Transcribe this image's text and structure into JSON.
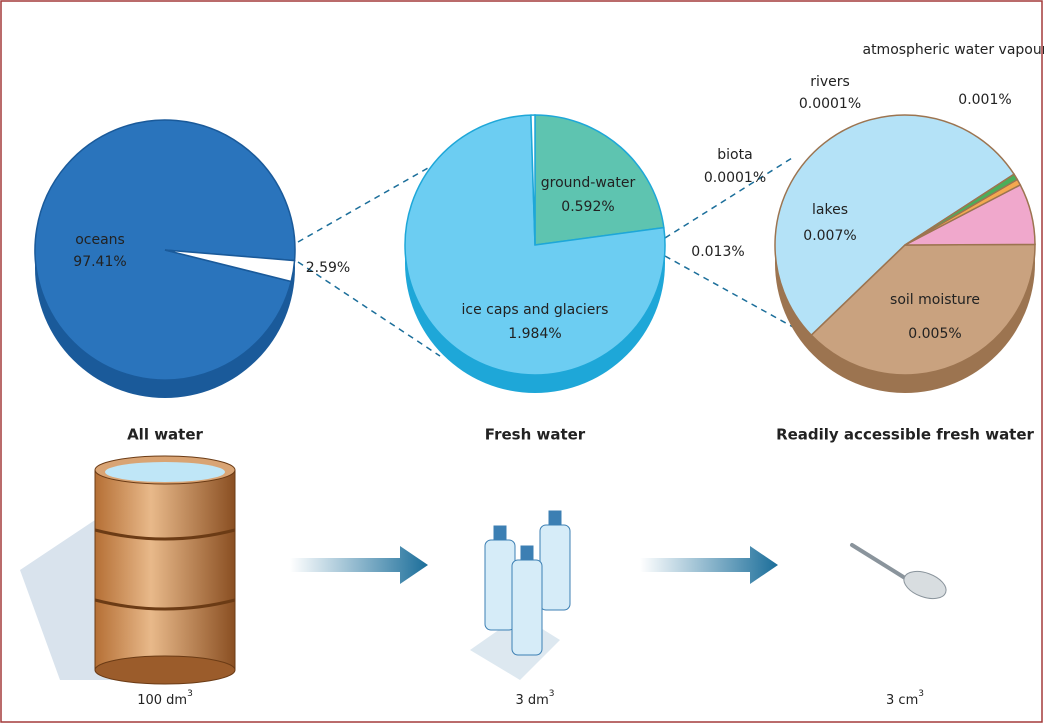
{
  "chart_data": [
    {
      "type": "pie",
      "title": "All water",
      "categories": [
        "oceans",
        null
      ],
      "values": [
        97.41,
        2.59
      ],
      "value_labels": [
        "97.41%",
        "2.59%"
      ],
      "colors": [
        "#2a74bc",
        "#ffffff"
      ],
      "volume": "100 dm",
      "volume_exponent": "3"
    },
    {
      "type": "pie",
      "title": "Fresh water",
      "categories": [
        "ground-water",
        "ice caps and glaciers",
        null
      ],
      "values": [
        0.592,
        1.984,
        0.013
      ],
      "value_labels": [
        "0.592%",
        "1.984%",
        "0.013%"
      ],
      "colors": [
        "#5ec4b0",
        "#6ccdf2",
        "#ffffff"
      ],
      "volume": "3 dm",
      "volume_exponent": "3"
    },
    {
      "type": "pie",
      "title": "Readily accessible fresh water",
      "categories": [
        "lakes",
        "soil moisture",
        "atmospheric water vapour",
        "rivers",
        "biota"
      ],
      "values": [
        0.007,
        0.005,
        0.001,
        0.0001,
        0.0001
      ],
      "value_labels": [
        "0.007%",
        "0.005%",
        "0.001%",
        "0.0001%",
        "0.0001%"
      ],
      "colors": [
        "#b4e2f7",
        "#c9a27f",
        "#f0a8cc",
        "#f3a850",
        "#4aae5a"
      ],
      "volume": "3 cm",
      "volume_exponent": "3"
    }
  ]
}
